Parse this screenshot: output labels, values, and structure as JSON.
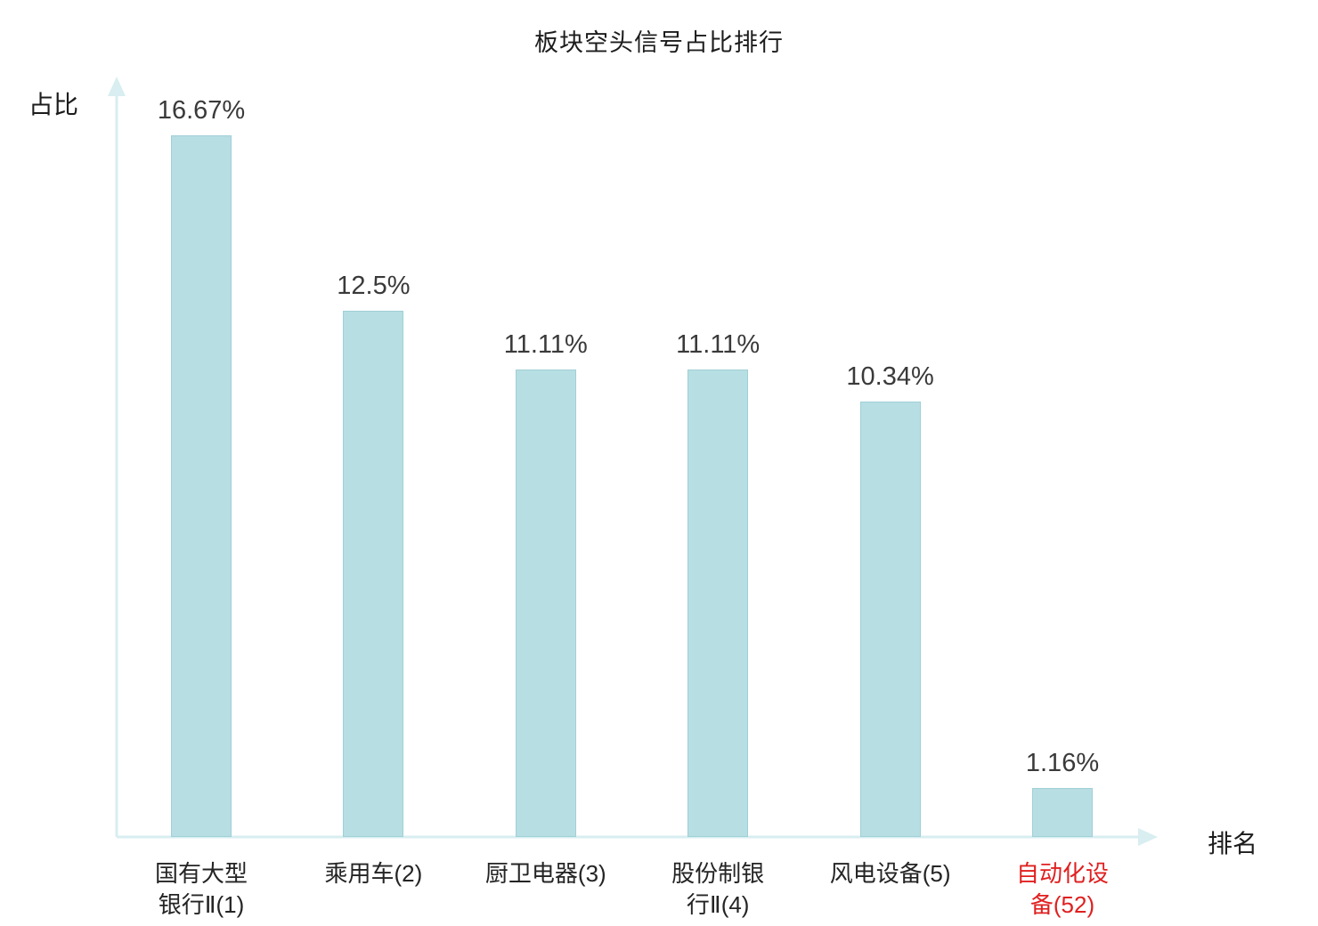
{
  "chart_data": {
    "type": "bar",
    "title": "板块空头信号占比排行",
    "ylabel": "占比",
    "xlabel": "排名",
    "categories": [
      "国有大型\n银行Ⅱ(1)",
      "乘用车(2)",
      "厨卫电器(3)",
      "股份制银\n行Ⅱ(4)",
      "风电设备(5)",
      "自动化设\n备(52)"
    ],
    "values": [
      16.67,
      12.5,
      11.11,
      11.11,
      10.34,
      1.16
    ],
    "value_labels": [
      "16.67%",
      "12.5%",
      "11.11%",
      "11.11%",
      "10.34%",
      "1.16%"
    ],
    "ylim": [
      0,
      18
    ],
    "grid": false,
    "legend": "none",
    "highlight_index": 5,
    "colors": {
      "bar_fill": "#b7dee3",
      "bar_border": "#9fd0d6",
      "axis": "#d8eef0",
      "highlight_text": "#e02020",
      "text": "#2e2e2e"
    }
  }
}
